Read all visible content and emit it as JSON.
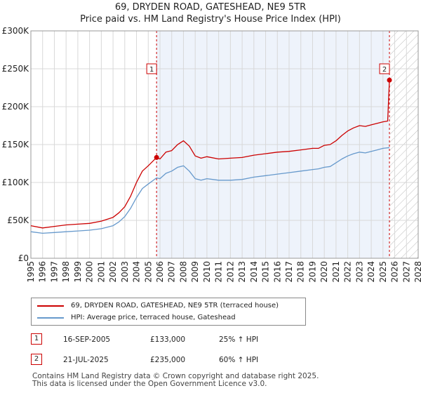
{
  "chart_data": {
    "type": "line",
    "title": "69, DRYDEN ROAD, GATESHEAD, NE9 5TR",
    "subtitle": "Price paid vs. HM Land Registry's House Price Index (HPI)",
    "xlabel": "",
    "ylabel": "",
    "xlim": [
      1995,
      2028
    ],
    "ylim": [
      0,
      300000
    ],
    "x_ticks": [
      "1995",
      "1996",
      "1997",
      "1998",
      "1999",
      "2000",
      "2001",
      "2002",
      "2003",
      "2004",
      "2005",
      "2006",
      "2007",
      "2008",
      "2009",
      "2010",
      "2011",
      "2012",
      "2013",
      "2014",
      "2015",
      "2016",
      "2017",
      "2018",
      "2019",
      "2020",
      "2021",
      "2022",
      "2023",
      "2024",
      "2025",
      "2026",
      "2027",
      "2028"
    ],
    "y_ticks": [
      {
        "value": 0,
        "label": "£0"
      },
      {
        "value": 50000,
        "label": "£50K"
      },
      {
        "value": 100000,
        "label": "£100K"
      },
      {
        "value": 150000,
        "label": "£150K"
      },
      {
        "value": 200000,
        "label": "£200K"
      },
      {
        "value": 250000,
        "label": "£250K"
      },
      {
        "value": 300000,
        "label": "£300K"
      }
    ],
    "grid": true,
    "shaded_period": [
      2005.71,
      2025.55
    ],
    "hatched_future_from": 2025.55,
    "series": [
      {
        "name": "69, DRYDEN ROAD, GATESHEAD, NE9 5TR (terraced house)",
        "color": "#cc0000",
        "x": [
          1995.0,
          1996.0,
          1997.0,
          1998.0,
          1999.0,
          2000.0,
          2001.0,
          2002.0,
          2002.5,
          2003.0,
          2003.5,
          2004.0,
          2004.5,
          2005.0,
          2005.71,
          2006.0,
          2006.5,
          2007.0,
          2007.5,
          2008.0,
          2008.5,
          2009.0,
          2009.5,
          2010.0,
          2011.0,
          2012.0,
          2013.0,
          2014.0,
          2015.0,
          2016.0,
          2017.0,
          2018.0,
          2019.0,
          2019.5,
          2020.0,
          2020.5,
          2021.0,
          2021.5,
          2022.0,
          2022.5,
          2023.0,
          2023.5,
          2024.0,
          2024.5,
          2025.0,
          2025.4,
          2025.55
        ],
        "values": [
          43000,
          40000,
          42000,
          44000,
          45000,
          46000,
          49000,
          54000,
          60000,
          68000,
          82000,
          100000,
          115000,
          122000,
          133000,
          131000,
          140000,
          142000,
          150000,
          155000,
          148000,
          135000,
          132000,
          134000,
          131000,
          132000,
          133000,
          136000,
          138000,
          140000,
          141000,
          143000,
          145000,
          145000,
          149000,
          150000,
          155000,
          162000,
          168000,
          172000,
          175000,
          174000,
          176000,
          178000,
          180000,
          181000,
          235000
        ]
      },
      {
        "name": "HPI: Average price, terraced house, Gateshead",
        "color": "#6699cc",
        "x": [
          1995.0,
          1996.0,
          1997.0,
          1998.0,
          1999.0,
          2000.0,
          2001.0,
          2002.0,
          2002.5,
          2003.0,
          2003.5,
          2004.0,
          2004.5,
          2005.0,
          2005.71,
          2006.0,
          2006.5,
          2007.0,
          2007.5,
          2008.0,
          2008.5,
          2009.0,
          2009.5,
          2010.0,
          2011.0,
          2012.0,
          2013.0,
          2014.0,
          2015.0,
          2016.0,
          2017.0,
          2018.0,
          2019.0,
          2019.5,
          2020.0,
          2020.5,
          2021.0,
          2021.5,
          2022.0,
          2022.5,
          2023.0,
          2023.5,
          2024.0,
          2024.5,
          2025.0,
          2025.55
        ],
        "values": [
          35000,
          33000,
          34000,
          35000,
          36000,
          37000,
          39000,
          43000,
          48000,
          55000,
          66000,
          80000,
          92000,
          98000,
          106000,
          105000,
          112000,
          115000,
          120000,
          122000,
          115000,
          105000,
          103000,
          105000,
          103000,
          103000,
          104000,
          107000,
          109000,
          111000,
          113000,
          115000,
          117000,
          118000,
          120000,
          121000,
          126000,
          131000,
          135000,
          138000,
          140000,
          139000,
          141000,
          143000,
          145000,
          146000
        ]
      }
    ],
    "sales": [
      {
        "label": "1",
        "x": 2005.71,
        "value": 133000
      },
      {
        "label": "2",
        "x": 2025.55,
        "value": 235000
      }
    ],
    "annotation_marker_level": 250000
  },
  "legend": {
    "items": [
      {
        "label": "69, DRYDEN ROAD, GATESHEAD, NE9 5TR (terraced house)",
        "color": "#cc0000"
      },
      {
        "label": "HPI: Average price, terraced house, Gateshead",
        "color": "#6699cc"
      }
    ]
  },
  "table": {
    "rows": [
      {
        "num": "1",
        "date": "16-SEP-2005",
        "price": "£133,000",
        "hpi": "25% ↑ HPI"
      },
      {
        "num": "2",
        "date": "21-JUL-2025",
        "price": "£235,000",
        "hpi": "60% ↑ HPI"
      }
    ]
  },
  "footer": {
    "line1": "Contains HM Land Registry data © Crown copyright and database right 2025.",
    "line2": "This data is licensed under the Open Government Licence v3.0."
  },
  "colors": {
    "property": "#cc0000",
    "hpi": "#6699cc",
    "shade": "#eef3fb",
    "grid": "#d8d8d8",
    "axis": "#999999"
  }
}
